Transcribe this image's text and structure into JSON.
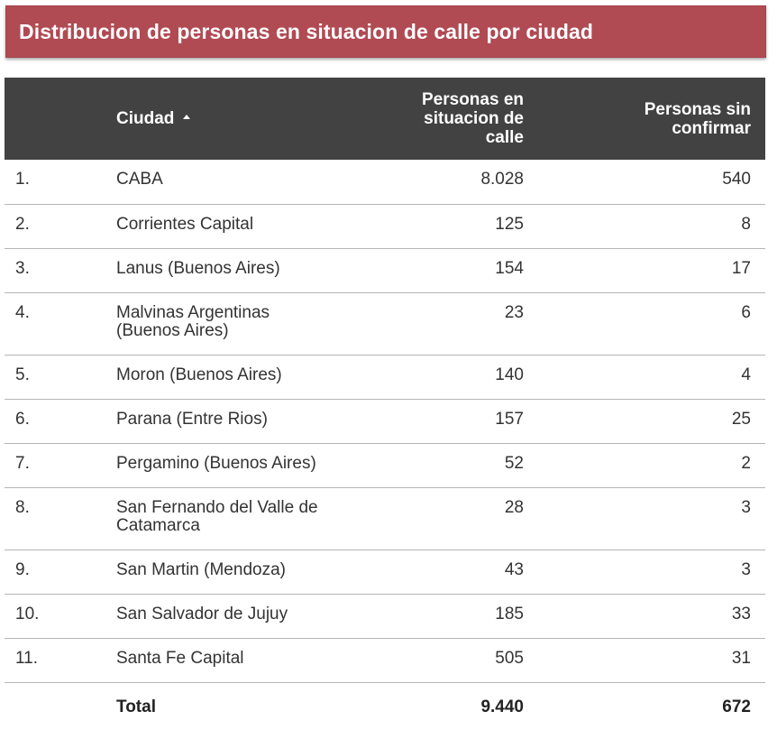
{
  "title": "Distribucion de personas en situacion de calle por ciudad",
  "colors": {
    "title_background": "#b04a53",
    "header_background": "#424242",
    "header_text": "#ffffff",
    "row_divider": "#b5b5b5"
  },
  "table": {
    "sort_column": "Ciudad",
    "sort_direction": "ascending",
    "sort_icon": "sort-ascending-icon",
    "headers": {
      "ciudad": "Ciudad",
      "personas": "Personas en situacion de calle",
      "sin_confirmar": "Personas sin confirmar"
    },
    "rows": [
      {
        "index": "1.",
        "ciudad": "CABA",
        "personas": "8.028",
        "sin_confirmar": "540"
      },
      {
        "index": "2.",
        "ciudad": "Corrientes Capital",
        "personas": "125",
        "sin_confirmar": "8"
      },
      {
        "index": "3.",
        "ciudad": "Lanus (Buenos Aires)",
        "personas": "154",
        "sin_confirmar": "17"
      },
      {
        "index": "4.",
        "ciudad": "Malvinas Argentinas (Buenos Aires)",
        "personas": "23",
        "sin_confirmar": "6"
      },
      {
        "index": "5.",
        "ciudad": "Moron (Buenos Aires)",
        "personas": "140",
        "sin_confirmar": "4"
      },
      {
        "index": "6.",
        "ciudad": "Parana (Entre Rios)",
        "personas": "157",
        "sin_confirmar": "25"
      },
      {
        "index": "7.",
        "ciudad": "Pergamino (Buenos Aires)",
        "personas": "52",
        "sin_confirmar": "2"
      },
      {
        "index": "8.",
        "ciudad": "San Fernando del Valle de Catamarca",
        "personas": "28",
        "sin_confirmar": "3"
      },
      {
        "index": "9.",
        "ciudad": "San Martin (Mendoza)",
        "personas": "43",
        "sin_confirmar": "3"
      },
      {
        "index": "10.",
        "ciudad": "San Salvador de Jujuy",
        "personas": "185",
        "sin_confirmar": "33"
      },
      {
        "index": "11.",
        "ciudad": "Santa Fe Capital",
        "personas": "505",
        "sin_confirmar": "31"
      }
    ],
    "total": {
      "label": "Total",
      "personas": "9.440",
      "sin_confirmar": "672"
    }
  },
  "chart_data": {
    "type": "table",
    "title": "Distribucion de personas en situacion de calle por ciudad",
    "columns": [
      "Ciudad",
      "Personas en situacion de calle",
      "Personas sin confirmar"
    ],
    "categories": [
      "CABA",
      "Corrientes Capital",
      "Lanus (Buenos Aires)",
      "Malvinas Argentinas (Buenos Aires)",
      "Moron (Buenos Aires)",
      "Parana (Entre Rios)",
      "Pergamino (Buenos Aires)",
      "San Fernando del Valle de Catamarca",
      "San Martin (Mendoza)",
      "San Salvador de Jujuy",
      "Santa Fe Capital"
    ],
    "series": [
      {
        "name": "Personas en situacion de calle",
        "values": [
          8028,
          125,
          154,
          23,
          140,
          157,
          52,
          28,
          43,
          185,
          505
        ]
      },
      {
        "name": "Personas sin confirmar",
        "values": [
          540,
          8,
          17,
          6,
          4,
          25,
          2,
          3,
          3,
          33,
          31
        ]
      }
    ],
    "totals": {
      "Personas en situacion de calle": 9440,
      "Personas sin confirmar": 672
    }
  }
}
